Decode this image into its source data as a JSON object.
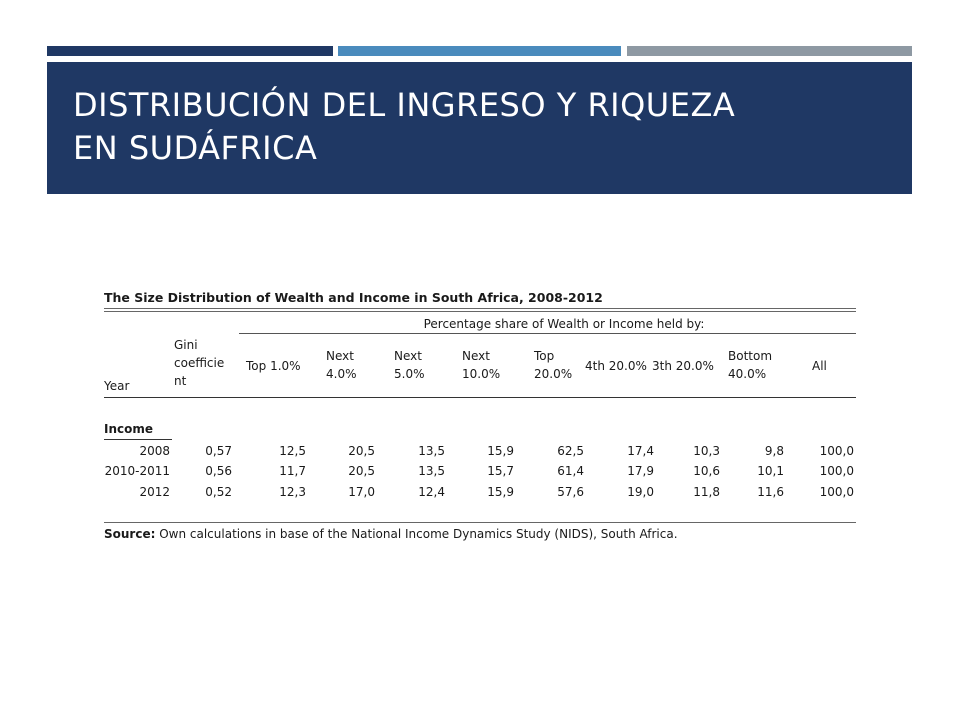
{
  "slide": {
    "title_line1": "DISTRIBUCIÓN DEL INGRESO Y RIQUEZA",
    "title_line2": "EN SUDÁFRICA",
    "colors": {
      "banner": "#1f3864",
      "bar_dark": "#1f3864",
      "bar_mid": "#4a8bbd",
      "bar_gray": "#8e99a3"
    }
  },
  "table": {
    "title": "The Size Distribution of Wealth and Income in South Africa, 2008-2012",
    "span_header": "Percentage share of Wealth or Income held by:",
    "columns": [
      {
        "line1": "Year",
        "line2": "",
        "line3": ""
      },
      {
        "line1": "Gini",
        "line2": "coefficie",
        "line3": "nt"
      },
      {
        "line1": "Top 1.0%",
        "line2": "",
        "line3": ""
      },
      {
        "line1": "Next",
        "line2": "4.0%",
        "line3": ""
      },
      {
        "line1": "Next",
        "line2": "5.0%",
        "line3": ""
      },
      {
        "line1": "Next",
        "line2": "10.0%",
        "line3": ""
      },
      {
        "line1": "Top",
        "line2": "20.0%",
        "line3": ""
      },
      {
        "line1": "4th 20.0%",
        "line2": "",
        "line3": ""
      },
      {
        "line1": "3th 20.0%",
        "line2": "",
        "line3": ""
      },
      {
        "line1": "Bottom",
        "line2": "40.0%",
        "line3": ""
      },
      {
        "line1": "All",
        "line2": "",
        "line3": ""
      }
    ],
    "section_label": "Income",
    "rows": [
      [
        "2008",
        "0,57",
        "12,5",
        "20,5",
        "13,5",
        "15,9",
        "62,5",
        "17,4",
        "10,3",
        "9,8",
        "100,0"
      ],
      [
        "2010-2011",
        "0,56",
        "11,7",
        "20,5",
        "13,5",
        "15,7",
        "61,4",
        "17,9",
        "10,6",
        "10,1",
        "100,0"
      ],
      [
        "2012",
        "0,52",
        "12,3",
        "17,0",
        "12,4",
        "15,9",
        "57,6",
        "19,0",
        "11,8",
        "11,6",
        "100,0"
      ]
    ],
    "source_label": "Source:",
    "source_text": " Own calculations in base of the National Income Dynamics Study (NIDS), South Africa."
  }
}
